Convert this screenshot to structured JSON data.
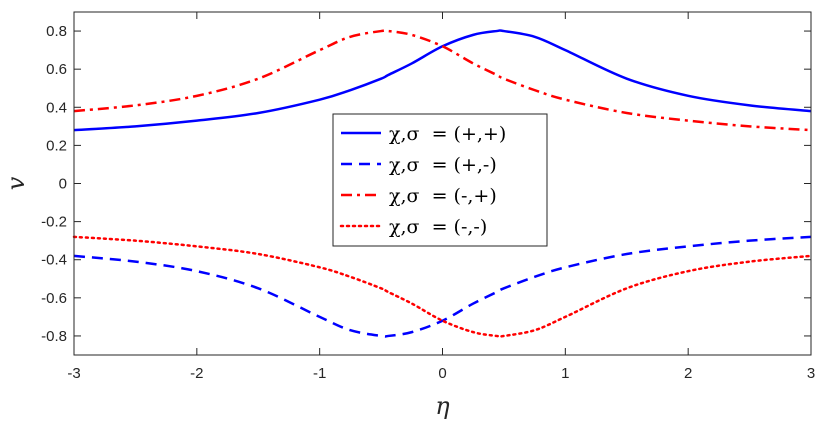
{
  "chart_data": {
    "type": "line",
    "xlabel": "η",
    "ylabel": "v",
    "xlim": [
      -3,
      3
    ],
    "ylim": [
      -0.9,
      0.9
    ],
    "grid": false,
    "legend_placement": "center",
    "xticks": [
      "-3",
      "-2",
      "-1",
      "0",
      "1",
      "2",
      "3"
    ],
    "yticks": [
      "-0.8",
      "-0.6",
      "-0.4",
      "-0.2",
      "0",
      "0.2",
      "0.4",
      "0.6",
      "0.8"
    ],
    "x": [
      -3,
      -2.5,
      -2,
      -1.5,
      -1,
      -0.75,
      -0.5,
      -0.44,
      -0.25,
      0,
      0.25,
      0.44,
      0.5,
      0.75,
      1,
      1.5,
      2,
      2.5,
      3
    ],
    "series": [
      {
        "name": "χ,σ  = (+,+)",
        "color": "#0000ff",
        "style": "solid",
        "values": [
          0.28,
          0.3,
          0.33,
          0.37,
          0.44,
          0.49,
          0.55,
          0.57,
          0.63,
          0.72,
          0.78,
          0.8,
          0.8,
          0.77,
          0.7,
          0.55,
          0.46,
          0.41,
          0.38
        ]
      },
      {
        "name": "χ,σ  = (+,-)",
        "color": "#0000ff",
        "style": "dashed",
        "values": [
          -0.38,
          -0.41,
          -0.46,
          -0.55,
          -0.7,
          -0.77,
          -0.8,
          -0.8,
          -0.78,
          -0.72,
          -0.63,
          -0.57,
          -0.55,
          -0.49,
          -0.44,
          -0.37,
          -0.33,
          -0.3,
          -0.28
        ]
      },
      {
        "name": "χ,σ  = (-,+)",
        "color": "#ff0000",
        "style": "dashdot",
        "values": [
          0.38,
          0.41,
          0.46,
          0.55,
          0.7,
          0.77,
          0.8,
          0.8,
          0.78,
          0.72,
          0.63,
          0.57,
          0.55,
          0.49,
          0.44,
          0.37,
          0.33,
          0.3,
          0.28
        ]
      },
      {
        "name": "χ,σ  = (-,-)",
        "color": "#ff0000",
        "style": "dotted",
        "values": [
          -0.28,
          -0.3,
          -0.33,
          -0.37,
          -0.44,
          -0.49,
          -0.55,
          -0.57,
          -0.63,
          -0.72,
          -0.78,
          -0.8,
          -0.8,
          -0.77,
          -0.7,
          -0.55,
          -0.46,
          -0.41,
          -0.38
        ]
      }
    ]
  }
}
